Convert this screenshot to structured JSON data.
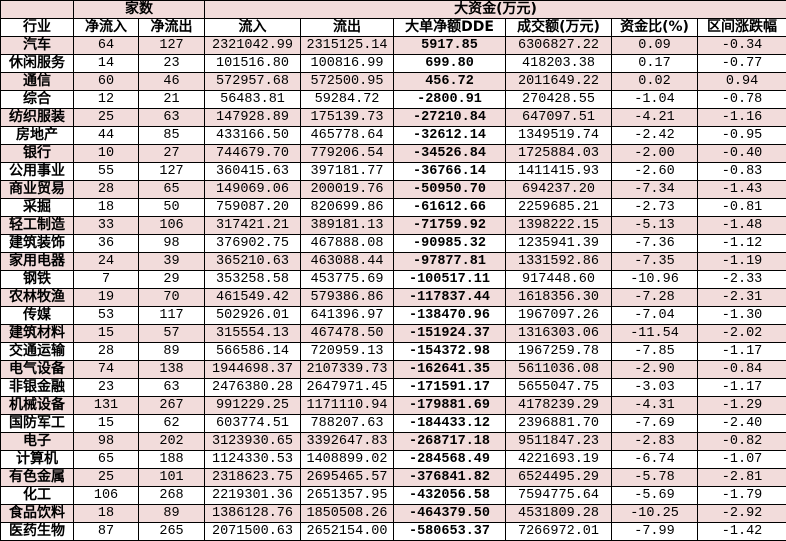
{
  "header": {
    "group_count": "家数",
    "group_big_fund": "大资金(万元)",
    "columns": [
      "行业",
      "净流入",
      "净流出",
      "流入",
      "流出",
      "大单净额DDE",
      "成交额(万元)",
      "资金比(%)",
      "区间涨跌幅"
    ]
  },
  "colors": {
    "row_alt": "#f2dcdb",
    "border": "#000000"
  },
  "rows": [
    [
      "汽车",
      "64",
      "127",
      "2321042.99",
      "2315125.14",
      "5917.85",
      "6306827.22",
      "0.09",
      "-0.34"
    ],
    [
      "休闲服务",
      "14",
      "23",
      "101516.80",
      "100816.99",
      "699.80",
      "418203.38",
      "0.17",
      "-0.77"
    ],
    [
      "通信",
      "60",
      "46",
      "572957.68",
      "572500.95",
      "456.72",
      "2011649.22",
      "0.02",
      "0.94"
    ],
    [
      "综合",
      "12",
      "21",
      "56483.81",
      "59284.72",
      "-2800.91",
      "270428.55",
      "-1.04",
      "-0.78"
    ],
    [
      "纺织服装",
      "25",
      "63",
      "147928.89",
      "175139.73",
      "-27210.84",
      "647097.51",
      "-4.21",
      "-1.16"
    ],
    [
      "房地产",
      "44",
      "85",
      "433166.50",
      "465778.64",
      "-32612.14",
      "1349519.74",
      "-2.42",
      "-0.95"
    ],
    [
      "银行",
      "10",
      "27",
      "744679.70",
      "779206.54",
      "-34526.84",
      "1725884.03",
      "-2.00",
      "-0.40"
    ],
    [
      "公用事业",
      "55",
      "127",
      "360415.63",
      "397181.77",
      "-36766.14",
      "1411415.93",
      "-2.60",
      "-0.83"
    ],
    [
      "商业贸易",
      "28",
      "65",
      "149069.06",
      "200019.76",
      "-50950.70",
      "694237.20",
      "-7.34",
      "-1.43"
    ],
    [
      "采掘",
      "18",
      "50",
      "759087.20",
      "820699.86",
      "-61612.66",
      "2259685.21",
      "-2.73",
      "-0.81"
    ],
    [
      "轻工制造",
      "33",
      "106",
      "317421.21",
      "389181.13",
      "-71759.92",
      "1398222.15",
      "-5.13",
      "-1.48"
    ],
    [
      "建筑装饰",
      "36",
      "98",
      "376902.75",
      "467888.08",
      "-90985.32",
      "1235941.39",
      "-7.36",
      "-1.12"
    ],
    [
      "家用电器",
      "24",
      "39",
      "365210.63",
      "463088.44",
      "-97877.81",
      "1331592.86",
      "-7.35",
      "-1.19"
    ],
    [
      "钢铁",
      "7",
      "29",
      "353258.58",
      "453775.69",
      "-100517.11",
      "917448.60",
      "-10.96",
      "-2.33"
    ],
    [
      "农林牧渔",
      "19",
      "70",
      "461549.42",
      "579386.86",
      "-117837.44",
      "1618356.30",
      "-7.28",
      "-2.31"
    ],
    [
      "传媒",
      "53",
      "117",
      "502926.01",
      "641396.97",
      "-138470.96",
      "1967097.26",
      "-7.04",
      "-1.30"
    ],
    [
      "建筑材料",
      "15",
      "57",
      "315554.13",
      "467478.50",
      "-151924.37",
      "1316303.06",
      "-11.54",
      "-2.02"
    ],
    [
      "交通运输",
      "28",
      "89",
      "566586.14",
      "720959.13",
      "-154372.98",
      "1967259.78",
      "-7.85",
      "-1.17"
    ],
    [
      "电气设备",
      "74",
      "138",
      "1944698.37",
      "2107339.73",
      "-162641.35",
      "5611036.08",
      "-2.90",
      "-0.84"
    ],
    [
      "非银金融",
      "23",
      "63",
      "2476380.28",
      "2647971.45",
      "-171591.17",
      "5655047.75",
      "-3.03",
      "-1.17"
    ],
    [
      "机械设备",
      "131",
      "267",
      "991229.25",
      "1171110.94",
      "-179881.69",
      "4178239.29",
      "-4.31",
      "-1.29"
    ],
    [
      "国防军工",
      "15",
      "62",
      "603774.51",
      "788207.63",
      "-184433.12",
      "2396881.70",
      "-7.69",
      "-2.40"
    ],
    [
      "电子",
      "98",
      "202",
      "3123930.65",
      "3392647.83",
      "-268717.18",
      "9511847.23",
      "-2.83",
      "-0.82"
    ],
    [
      "计算机",
      "65",
      "188",
      "1124330.53",
      "1408899.02",
      "-284568.49",
      "4221693.19",
      "-6.74",
      "-1.07"
    ],
    [
      "有色金属",
      "25",
      "101",
      "2318623.75",
      "2695465.57",
      "-376841.82",
      "6524495.29",
      "-5.78",
      "-2.81"
    ],
    [
      "化工",
      "106",
      "268",
      "2219301.36",
      "2651357.95",
      "-432056.58",
      "7594775.64",
      "-5.69",
      "-1.79"
    ],
    [
      "食品饮料",
      "18",
      "89",
      "1386128.76",
      "1850508.26",
      "-464379.50",
      "4531809.28",
      "-10.25",
      "-2.92"
    ],
    [
      "医药生物",
      "87",
      "265",
      "2071500.63",
      "2652154.00",
      "-580653.37",
      "7266972.01",
      "-7.99",
      "-1.42"
    ]
  ]
}
